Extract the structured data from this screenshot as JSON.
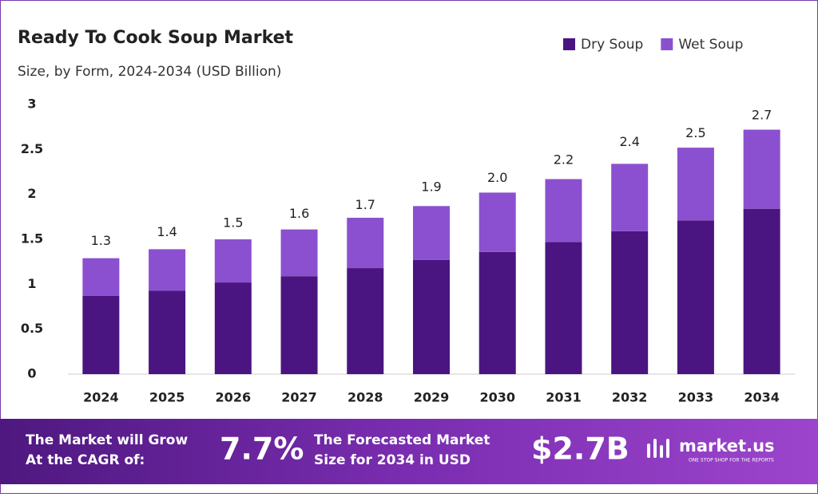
{
  "chart_data": {
    "type": "stacked_bar",
    "title": "Ready To Cook Soup Market",
    "subtitle": "Size, by Form, 2024-2034 (USD Billion)",
    "categories": [
      "2024",
      "2025",
      "2026",
      "2027",
      "2028",
      "2029",
      "2030",
      "2031",
      "2032",
      "2033",
      "2034"
    ],
    "series": [
      {
        "name": "Dry Soup",
        "color": "#4a1580",
        "values": [
          0.87,
          0.93,
          1.02,
          1.09,
          1.18,
          1.27,
          1.36,
          1.47,
          1.59,
          1.71,
          1.84
        ]
      },
      {
        "name": "Wet Soup",
        "color": "#8b50cf",
        "values": [
          0.42,
          0.46,
          0.48,
          0.52,
          0.56,
          0.6,
          0.66,
          0.7,
          0.75,
          0.81,
          0.88
        ]
      }
    ],
    "totals": {
      "values": [
        1.3,
        1.4,
        1.5,
        1.6,
        1.7,
        1.9,
        2.0,
        2.2,
        2.4,
        2.5,
        2.7
      ],
      "value_labels": [
        "1.3",
        "1.4",
        "1.5",
        "1.6",
        "1.7",
        "1.9",
        "2.0",
        "2.2",
        "2.4",
        "2.5",
        "2.7"
      ]
    },
    "ylim": [
      0,
      3
    ],
    "yticks": [
      0,
      0.5,
      1,
      1.5,
      2,
      2.5,
      3
    ],
    "legend": "top-right"
  },
  "banner": {
    "grow_line1": "The Market will Grow",
    "grow_line2": "At the CAGR of:",
    "cagr": "7.7%",
    "forecast_line1": "The Forecasted Market",
    "forecast_line2": "Size for 2034 in USD",
    "forecast_value": "$2.7B",
    "brand": "market.us",
    "tagline": "ONE STOP SHOP FOR THE REPORTS"
  }
}
